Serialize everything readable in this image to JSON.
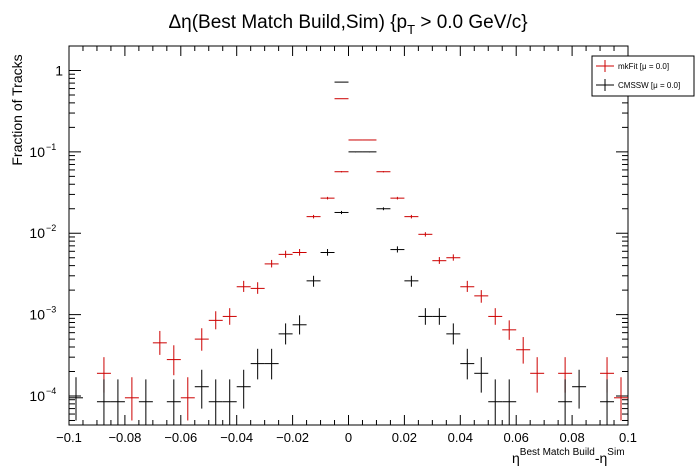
{
  "chart_data": {
    "type": "scatter",
    "title": "Δη(Best Match Build,Sim) {p",
    "title_sub": "T",
    "title_tail": " > 0.0 GeV/c}",
    "ylabel": "Fraction of Tracks",
    "xlabel_eta": "η",
    "xlabel_sup1": "Best Match Build",
    "xlabel_mid": "-η",
    "xlabel_sup2": "Sim",
    "xlim": [
      -0.1,
      0.1
    ],
    "ylim": [
      4.4e-05,
      2.0
    ],
    "y_scale": "log",
    "bin_width": 0.005,
    "x_ticks": [
      "−0.1",
      "−0.08",
      "−0.06",
      "−0.04",
      "−0.02",
      "0",
      "0.02",
      "0.04",
      "0.06",
      "0.08",
      "0.1"
    ],
    "x_tick_values": [
      -0.1,
      -0.08,
      -0.06,
      -0.04,
      -0.02,
      0,
      0.02,
      0.04,
      0.06,
      0.08,
      0.1
    ],
    "y_ticks": [
      "10",
      "10",
      "10",
      "10",
      "1"
    ],
    "y_tick_exps": [
      "−4",
      "−3",
      "−2",
      "−1",
      ""
    ],
    "y_tick_values": [
      0.0001,
      0.001,
      0.01,
      0.1,
      1
    ],
    "legend_position": "top-right",
    "series": [
      {
        "name": "mkFit  [μ = 0.0]",
        "color": "#cc0000",
        "points": [
          {
            "x": -0.0875,
            "y": 0.00019,
            "ylo": 0.00011,
            "yhi": 0.0003
          },
          {
            "x": -0.0775,
            "y": 9.5e-05,
            "ylo": 5e-05,
            "yhi": 0.00017
          },
          {
            "x": -0.0675,
            "y": 0.00045,
            "ylo": 0.00032,
            "yhi": 0.00063
          },
          {
            "x": -0.0625,
            "y": 0.00028,
            "ylo": 0.00018,
            "yhi": 0.00042
          },
          {
            "x": -0.0575,
            "y": 9.5e-05,
            "ylo": 5e-05,
            "yhi": 0.00017
          },
          {
            "x": -0.0525,
            "y": 0.0005,
            "ylo": 0.00036,
            "yhi": 0.00068
          },
          {
            "x": -0.0475,
            "y": 0.00085,
            "ylo": 0.00066,
            "yhi": 0.0011
          },
          {
            "x": -0.0425,
            "y": 0.00095,
            "ylo": 0.00075,
            "yhi": 0.0012
          },
          {
            "x": -0.0375,
            "y": 0.0022,
            "ylo": 0.0019,
            "yhi": 0.0026
          },
          {
            "x": -0.0325,
            "y": 0.0021,
            "ylo": 0.0018,
            "yhi": 0.0025
          },
          {
            "x": -0.0275,
            "y": 0.0042,
            "ylo": 0.0038,
            "yhi": 0.0047
          },
          {
            "x": -0.0225,
            "y": 0.0055,
            "ylo": 0.005,
            "yhi": 0.0061
          },
          {
            "x": -0.0175,
            "y": 0.0058,
            "ylo": 0.0053,
            "yhi": 0.0064
          },
          {
            "x": -0.0125,
            "y": 0.016,
            "ylo": 0.0152,
            "yhi": 0.0168
          },
          {
            "x": -0.0075,
            "y": 0.027,
            "ylo": 0.026,
            "yhi": 0.028
          },
          {
            "x": -0.0025,
            "y": 0.057,
            "ylo": 0.056,
            "yhi": 0.058
          },
          {
            "x": 0.0025,
            "y": 0.14,
            "ylo": 0.139,
            "yhi": 0.141
          },
          {
            "x": -0.0025,
            "y": 0.45,
            "ylo": 0.448,
            "yhi": 0.452
          },
          {
            "x": 0.0075,
            "y": 0.14,
            "ylo": 0.139,
            "yhi": 0.141
          },
          {
            "x": 0.0125,
            "y": 0.057,
            "ylo": 0.056,
            "yhi": 0.058
          },
          {
            "x": 0.0175,
            "y": 0.027,
            "ylo": 0.026,
            "yhi": 0.028
          },
          {
            "x": 0.0225,
            "y": 0.016,
            "ylo": 0.0152,
            "yhi": 0.0168
          },
          {
            "x": 0.0275,
            "y": 0.0097,
            "ylo": 0.0091,
            "yhi": 0.0103
          },
          {
            "x": 0.0325,
            "y": 0.0046,
            "ylo": 0.0042,
            "yhi": 0.0051
          },
          {
            "x": 0.0375,
            "y": 0.005,
            "ylo": 0.0046,
            "yhi": 0.0055
          },
          {
            "x": 0.0425,
            "y": 0.0022,
            "ylo": 0.0019,
            "yhi": 0.0026
          },
          {
            "x": 0.0475,
            "y": 0.0017,
            "ylo": 0.0014,
            "yhi": 0.002
          },
          {
            "x": 0.0525,
            "y": 0.00095,
            "ylo": 0.00075,
            "yhi": 0.0012
          },
          {
            "x": 0.0575,
            "y": 0.00065,
            "ylo": 0.00049,
            "yhi": 0.00085
          },
          {
            "x": 0.0625,
            "y": 0.00037,
            "ylo": 0.00025,
            "yhi": 0.00053
          },
          {
            "x": 0.0675,
            "y": 0.00019,
            "ylo": 0.00011,
            "yhi": 0.0003
          },
          {
            "x": 0.0775,
            "y": 0.00019,
            "ylo": 0.00011,
            "yhi": 0.0003
          },
          {
            "x": 0.0925,
            "y": 0.00019,
            "ylo": 0.00011,
            "yhi": 0.0003
          },
          {
            "x": 0.0975,
            "y": 9.5e-05,
            "ylo": 5e-05,
            "yhi": 0.00017
          }
        ]
      },
      {
        "name": "CMSSW  [μ = 0.0]",
        "color": "#000000",
        "points": [
          {
            "x": -0.0975,
            "y": 9.5e-05,
            "ylo": 5e-05,
            "yhi": 0.00017
          },
          {
            "x": -0.0875,
            "y": 8.5e-05,
            "ylo": 4e-05,
            "yhi": 0.00016
          },
          {
            "x": -0.0825,
            "y": 8.5e-05,
            "ylo": 4e-05,
            "yhi": 0.00016
          },
          {
            "x": -0.0725,
            "y": 8.5e-05,
            "ylo": 4e-05,
            "yhi": 0.00016
          },
          {
            "x": -0.0625,
            "y": 8.5e-05,
            "ylo": 4e-05,
            "yhi": 0.00016
          },
          {
            "x": -0.0525,
            "y": 0.00013,
            "ylo": 7e-05,
            "yhi": 0.00021
          },
          {
            "x": -0.0475,
            "y": 8.5e-05,
            "ylo": 4e-05,
            "yhi": 0.00016
          },
          {
            "x": -0.0425,
            "y": 8.5e-05,
            "ylo": 4e-05,
            "yhi": 0.00016
          },
          {
            "x": -0.0375,
            "y": 0.00013,
            "ylo": 7e-05,
            "yhi": 0.00021
          },
          {
            "x": -0.0325,
            "y": 0.00025,
            "ylo": 0.00016,
            "yhi": 0.00038
          },
          {
            "x": -0.0275,
            "y": 0.00025,
            "ylo": 0.00016,
            "yhi": 0.00038
          },
          {
            "x": -0.0225,
            "y": 0.00058,
            "ylo": 0.00043,
            "yhi": 0.00078
          },
          {
            "x": -0.0175,
            "y": 0.00075,
            "ylo": 0.00057,
            "yhi": 0.00098
          },
          {
            "x": -0.0125,
            "y": 0.0026,
            "ylo": 0.0022,
            "yhi": 0.003
          },
          {
            "x": -0.0075,
            "y": 0.0058,
            "ylo": 0.0053,
            "yhi": 0.0064
          },
          {
            "x": -0.0025,
            "y": 0.018,
            "ylo": 0.0172,
            "yhi": 0.0188
          },
          {
            "x": 0.0025,
            "y": 0.1,
            "ylo": 0.099,
            "yhi": 0.101
          },
          {
            "x": -0.0025,
            "y": 0.72,
            "ylo": 0.718,
            "yhi": 0.722
          },
          {
            "x": 0.0075,
            "y": 0.1,
            "ylo": 0.099,
            "yhi": 0.101
          },
          {
            "x": 0.0125,
            "y": 0.02,
            "ylo": 0.0192,
            "yhi": 0.0208
          },
          {
            "x": 0.0175,
            "y": 0.0063,
            "ylo": 0.0058,
            "yhi": 0.0069
          },
          {
            "x": 0.0225,
            "y": 0.0026,
            "ylo": 0.0022,
            "yhi": 0.003
          },
          {
            "x": 0.0275,
            "y": 0.00095,
            "ylo": 0.00075,
            "yhi": 0.0012
          },
          {
            "x": 0.0325,
            "y": 0.00095,
            "ylo": 0.00075,
            "yhi": 0.0012
          },
          {
            "x": 0.0375,
            "y": 0.00058,
            "ylo": 0.00043,
            "yhi": 0.00078
          },
          {
            "x": 0.0425,
            "y": 0.00025,
            "ylo": 0.00016,
            "yhi": 0.00038
          },
          {
            "x": 0.0475,
            "y": 0.00019,
            "ylo": 0.00011,
            "yhi": 0.0003
          },
          {
            "x": 0.0525,
            "y": 8.5e-05,
            "ylo": 4e-05,
            "yhi": 0.00016
          },
          {
            "x": 0.0575,
            "y": 8.5e-05,
            "ylo": 4e-05,
            "yhi": 0.00016
          },
          {
            "x": 0.0775,
            "y": 8.5e-05,
            "ylo": 4e-05,
            "yhi": 0.00016
          },
          {
            "x": 0.0825,
            "y": 0.00013,
            "ylo": 7e-05,
            "yhi": 0.00021
          },
          {
            "x": 0.0925,
            "y": 8.5e-05,
            "ylo": 4e-05,
            "yhi": 0.00016
          }
        ]
      }
    ]
  }
}
